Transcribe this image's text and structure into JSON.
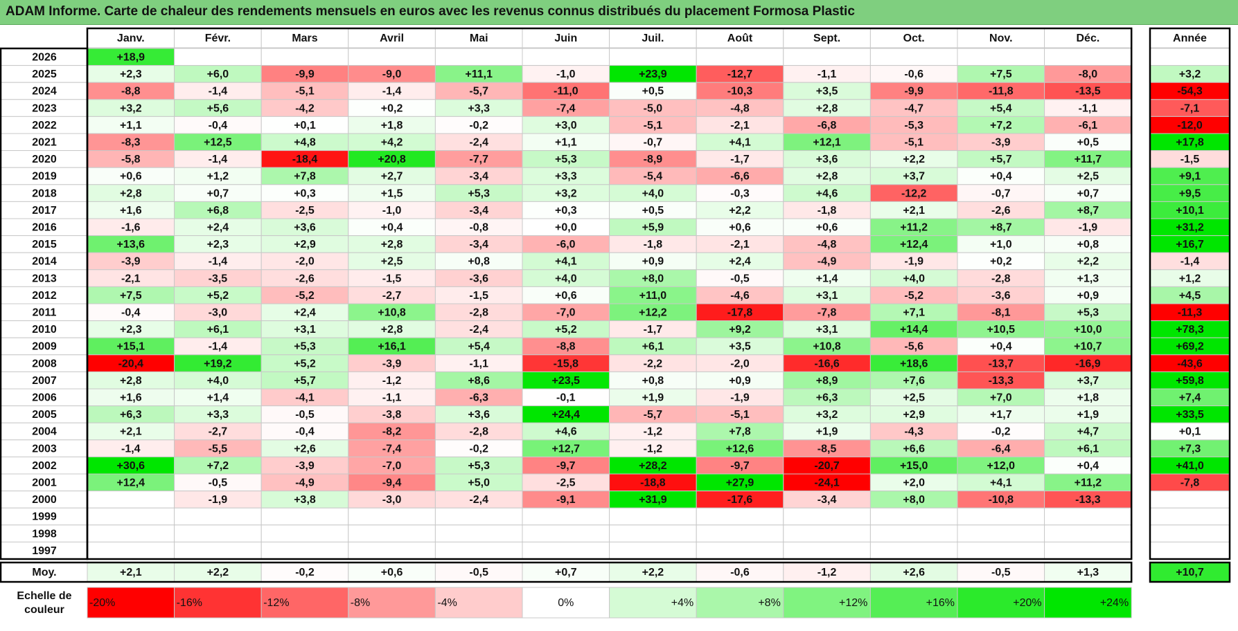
{
  "title": "ADAM Informe. Carte de chaleur des rendements mensuels en euros avec les revenus connus distribués du placement Formosa Plastic",
  "chart_data": {
    "type": "heatmap",
    "title": "ADAM Informe. Carte de chaleur des rendements mensuels en euros avec les revenus connus distribués du placement Formosa Plastic",
    "months": [
      "Janv.",
      "Févr.",
      "Mars",
      "Avril",
      "Mai",
      "Juin",
      "Juil.",
      "Août",
      "Sept.",
      "Oct.",
      "Nov.",
      "Déc."
    ],
    "year_header": "Année",
    "rows": [
      {
        "year": "2026",
        "m": [
          "+18,9",
          "",
          "",
          "",
          "",
          "",
          "",
          "",
          "",
          "",
          "",
          ""
        ],
        "y": ""
      },
      {
        "year": "2025",
        "m": [
          "+2,3",
          "+6,0",
          "-9,9",
          "-9,0",
          "+11,1",
          "-1,0",
          "+23,9",
          "-12,7",
          "-1,1",
          "-0,6",
          "+7,5",
          "-8,0"
        ],
        "y": "+3,2"
      },
      {
        "year": "2024",
        "m": [
          "-8,8",
          "-1,4",
          "-5,1",
          "-1,4",
          "-5,7",
          "-11,0",
          "+0,5",
          "-10,3",
          "+3,5",
          "-9,9",
          "-11,8",
          "-13,5"
        ],
        "y": "-54,3"
      },
      {
        "year": "2023",
        "m": [
          "+3,2",
          "+5,6",
          "-4,2",
          "+0,2",
          "+3,3",
          "-7,4",
          "-5,0",
          "-4,8",
          "+2,8",
          "-4,7",
          "+5,4",
          "-1,1"
        ],
        "y": "-7,1"
      },
      {
        "year": "2022",
        "m": [
          "+1,1",
          "-0,4",
          "+0,1",
          "+1,8",
          "-0,2",
          "+3,0",
          "-5,1",
          "-2,1",
          "-6,8",
          "-5,3",
          "+7,2",
          "-6,1"
        ],
        "y": "-12,0"
      },
      {
        "year": "2021",
        "m": [
          "-8,3",
          "+12,5",
          "+4,8",
          "+4,2",
          "-2,4",
          "+1,1",
          "-0,7",
          "+4,1",
          "+12,1",
          "-5,1",
          "-3,9",
          "+0,5"
        ],
        "y": "+17,8"
      },
      {
        "year": "2020",
        "m": [
          "-5,8",
          "-1,4",
          "-18,4",
          "+20,8",
          "-7,7",
          "+5,3",
          "-8,9",
          "-1,7",
          "+3,6",
          "+2,2",
          "+5,7",
          "+11,7"
        ],
        "y": "-1,5"
      },
      {
        "year": "2019",
        "m": [
          "+0,6",
          "+1,2",
          "+7,8",
          "+2,7",
          "-3,4",
          "+3,3",
          "-5,4",
          "-6,6",
          "+2,8",
          "+3,7",
          "+0,4",
          "+2,5"
        ],
        "y": "+9,1"
      },
      {
        "year": "2018",
        "m": [
          "+2,8",
          "+0,7",
          "+0,3",
          "+1,5",
          "+5,3",
          "+3,2",
          "+4,0",
          "-0,3",
          "+4,6",
          "-12,2",
          "-0,7",
          "+0,7"
        ],
        "y": "+9,5"
      },
      {
        "year": "2017",
        "m": [
          "+1,6",
          "+6,8",
          "-2,5",
          "-1,0",
          "-3,4",
          "+0,3",
          "+0,5",
          "+2,2",
          "-1,8",
          "+2,1",
          "-2,6",
          "+8,7"
        ],
        "y": "+10,1"
      },
      {
        "year": "2016",
        "m": [
          "-1,6",
          "+2,4",
          "+3,6",
          "+0,4",
          "-0,8",
          "+0,0",
          "+5,9",
          "+0,6",
          "+0,6",
          "+11,2",
          "+8,7",
          "-1,9"
        ],
        "y": "+31,2"
      },
      {
        "year": "2015",
        "m": [
          "+13,6",
          "+2,3",
          "+2,9",
          "+2,8",
          "-3,4",
          "-6,0",
          "-1,8",
          "-2,1",
          "-4,8",
          "+12,4",
          "+1,0",
          "+0,8"
        ],
        "y": "+16,7"
      },
      {
        "year": "2014",
        "m": [
          "-3,9",
          "-1,4",
          "-2,0",
          "+2,5",
          "+0,8",
          "+4,1",
          "+0,9",
          "+2,4",
          "-4,9",
          "-1,9",
          "+0,2",
          "+2,2"
        ],
        "y": "-1,4"
      },
      {
        "year": "2013",
        "m": [
          "-2,1",
          "-3,5",
          "-2,6",
          "-1,5",
          "-3,6",
          "+4,0",
          "+8,0",
          "-0,5",
          "+1,4",
          "+4,0",
          "-2,8",
          "+1,3"
        ],
        "y": "+1,2"
      },
      {
        "year": "2012",
        "m": [
          "+7,5",
          "+5,2",
          "-5,2",
          "-2,7",
          "-1,5",
          "+0,6",
          "+11,0",
          "-4,6",
          "+3,1",
          "-5,2",
          "-3,6",
          "+0,9"
        ],
        "y": "+4,5"
      },
      {
        "year": "2011",
        "m": [
          "-0,4",
          "-3,0",
          "+2,4",
          "+10,8",
          "-2,8",
          "-7,0",
          "+12,2",
          "-17,8",
          "-7,8",
          "+7,1",
          "-8,1",
          "+5,3"
        ],
        "y": "-11,3"
      },
      {
        "year": "2010",
        "m": [
          "+2,3",
          "+6,1",
          "+3,1",
          "+2,8",
          "-2,4",
          "+5,2",
          "-1,7",
          "+9,2",
          "+3,1",
          "+14,4",
          "+10,5",
          "+10,0"
        ],
        "y": "+78,3"
      },
      {
        "year": "2009",
        "m": [
          "+15,1",
          "-1,4",
          "+5,3",
          "+16,1",
          "+5,4",
          "-8,8",
          "+6,1",
          "+3,5",
          "+10,8",
          "-5,6",
          "+0,4",
          "+10,7"
        ],
        "y": "+69,2"
      },
      {
        "year": "2008",
        "m": [
          "-20,4",
          "+19,2",
          "+5,2",
          "-3,9",
          "-1,1",
          "-15,8",
          "-2,2",
          "-2,0",
          "-16,6",
          "+18,6",
          "-13,7",
          "-16,9"
        ],
        "y": "-43,6"
      },
      {
        "year": "2007",
        "m": [
          "+2,8",
          "+4,0",
          "+5,7",
          "-1,2",
          "+8,6",
          "+23,5",
          "+0,8",
          "+0,9",
          "+8,9",
          "+7,6",
          "-13,3",
          "+3,7"
        ],
        "y": "+59,8"
      },
      {
        "year": "2006",
        "m": [
          "+1,6",
          "+1,4",
          "-4,1",
          "-1,1",
          "-6,3",
          "-0,1",
          "+1,9",
          "-1,9",
          "+6,3",
          "+2,5",
          "+7,0",
          "+1,8"
        ],
        "y": "+7,4"
      },
      {
        "year": "2005",
        "m": [
          "+6,3",
          "+3,3",
          "-0,5",
          "-3,8",
          "+3,6",
          "+24,4",
          "-5,7",
          "-5,1",
          "+3,2",
          "+2,9",
          "+1,7",
          "+1,9"
        ],
        "y": "+33,5"
      },
      {
        "year": "2004",
        "m": [
          "+2,1",
          "-2,7",
          "-0,4",
          "-8,2",
          "-2,8",
          "+4,6",
          "-1,2",
          "+7,8",
          "+1,9",
          "-4,3",
          "-0,2",
          "+4,7"
        ],
        "y": "+0,1"
      },
      {
        "year": "2003",
        "m": [
          "-1,4",
          "-5,5",
          "+2,6",
          "-7,4",
          "-0,2",
          "+12,7",
          "-1,2",
          "+12,6",
          "-8,5",
          "+6,6",
          "-6,4",
          "+6,1"
        ],
        "y": "+7,3"
      },
      {
        "year": "2002",
        "m": [
          "+30,6",
          "+7,2",
          "-3,9",
          "-7,0",
          "+5,3",
          "-9,7",
          "+28,2",
          "-9,7",
          "-20,7",
          "+15,0",
          "+12,0",
          "+0,4"
        ],
        "y": "+41,0"
      },
      {
        "year": "2001",
        "m": [
          "+12,4",
          "-0,5",
          "-4,9",
          "-9,4",
          "+5,0",
          "-2,5",
          "-18,8",
          "+27,9",
          "-24,1",
          "+2,0",
          "+4,1",
          "+11,2"
        ],
        "y": "-7,8"
      },
      {
        "year": "2000",
        "m": [
          "",
          "-1,9",
          "+3,8",
          "-3,0",
          "-2,4",
          "-9,1",
          "+31,9",
          "-17,6",
          "-3,4",
          "+8,0",
          "-10,8",
          "-13,3"
        ],
        "y": ""
      },
      {
        "year": "1999",
        "m": [
          "",
          "",
          "",
          "",
          "",
          "",
          "",
          "",
          "",
          "",
          "",
          ""
        ],
        "y": ""
      },
      {
        "year": "1998",
        "m": [
          "",
          "",
          "",
          "",
          "",
          "",
          "",
          "",
          "",
          "",
          "",
          ""
        ],
        "y": ""
      },
      {
        "year": "1997",
        "m": [
          "",
          "",
          "",
          "",
          "",
          "",
          "",
          "",
          "",
          "",
          "",
          ""
        ],
        "y": ""
      }
    ],
    "average": {
      "label": "Moy.",
      "m": [
        "+2,1",
        "+2,2",
        "-0,2",
        "+0,6",
        "-0,5",
        "+0,7",
        "+2,2",
        "-0,6",
        "-1,2",
        "+2,6",
        "-0,5",
        "+1,3"
      ],
      "y": "+10,7"
    },
    "scale": {
      "label_line1": "Echelle de",
      "label_line2": "couleur",
      "steps": [
        "-20%",
        "-16%",
        "-12%",
        "-8%",
        "-4%",
        "0%",
        "+4%",
        "+8%",
        "+12%",
        "+16%",
        "+20%",
        "+24%"
      ],
      "step_values": [
        -20,
        -16,
        -12,
        -8,
        -4,
        0,
        4,
        8,
        12,
        16,
        20,
        24
      ]
    },
    "colors": {
      "max_negative": "#ff0000",
      "neutral": "#ffffff",
      "max_positive": "#00e600",
      "grid": "#c8c8c8",
      "frame": "#000000"
    }
  }
}
